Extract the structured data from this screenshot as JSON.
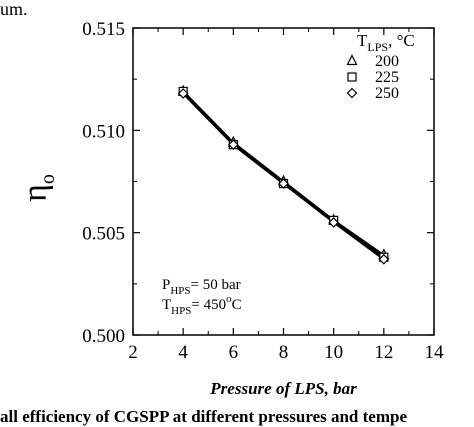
{
  "top_fragment": "um.",
  "caption": "all efficiency of CGSPP at different pressures and tempe",
  "chart_data": {
    "type": "line",
    "xlabel": "Pressure of LPS, bar",
    "ylabel": "η",
    "ylabel_sub": "o",
    "xlim": [
      2,
      14
    ],
    "ylim": [
      0.5,
      0.515
    ],
    "x_ticks": [
      2,
      4,
      6,
      8,
      10,
      12,
      14
    ],
    "y_ticks": [
      "0.500",
      "0.505",
      "0.510",
      "0.515"
    ],
    "legend": {
      "title": "T",
      "title_sub": "LPS",
      "title_unit": ", °C",
      "placement": "top-right",
      "entries": [
        "200",
        "225",
        "250"
      ]
    },
    "annotation": {
      "line1": {
        "main": "P",
        "sub": "HPS",
        "rest": "= 50 bar"
      },
      "line2": {
        "main": "T",
        "sub": "HPS",
        "rest": "= 450",
        "sup": "o",
        "unit": "C"
      }
    },
    "series": [
      {
        "name": "200",
        "marker": "triangle",
        "x": [
          4,
          6,
          8,
          10,
          12
        ],
        "y": [
          0.5119,
          0.5094,
          0.5075,
          0.5056,
          0.5039
        ]
      },
      {
        "name": "225",
        "marker": "square",
        "x": [
          4,
          6,
          8,
          10,
          12
        ],
        "y": [
          0.5119,
          0.5093,
          0.5074,
          0.5056,
          0.5038
        ]
      },
      {
        "name": "250",
        "marker": "diamond",
        "x": [
          4,
          6,
          8,
          10,
          12
        ],
        "y": [
          0.5118,
          0.5093,
          0.5074,
          0.5055,
          0.5037
        ]
      }
    ]
  }
}
